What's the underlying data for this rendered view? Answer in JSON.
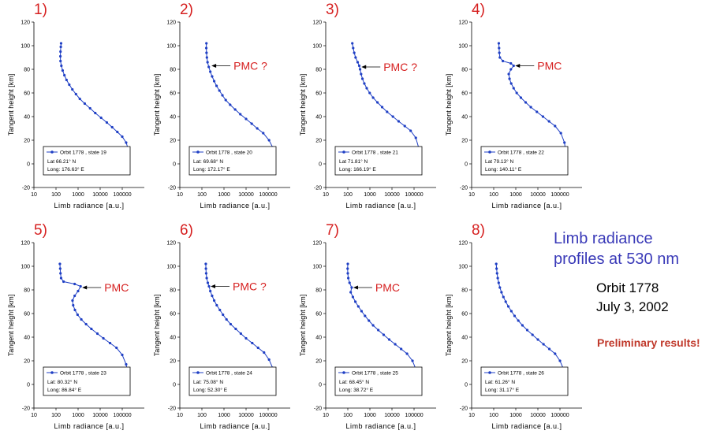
{
  "side_text": {
    "title_line1": "Limb radiance",
    "title_line2": "profiles at 530 nm",
    "orbit": "Orbit 1778",
    "date": "July 3, 2002",
    "preliminary": "Preliminary results!"
  },
  "colors": {
    "series": "#1f3fc4",
    "panel_number": "#d62020",
    "annotation": "#d62020",
    "title": "#3a3ab8",
    "preliminary": "#c0392b"
  },
  "chart_data": [
    {
      "type": "line",
      "panel_number": "1)",
      "xlabel": "Limb radiance [a.u.]",
      "ylabel": "Tangent height [km]",
      "x_scale": "log",
      "xlim": [
        10,
        1000000
      ],
      "ylim": [
        -20,
        120
      ],
      "xticks": [
        "10",
        "100",
        "1000",
        "10000",
        "100000"
      ],
      "yticks": [
        "-20",
        "0",
        "20",
        "40",
        "60",
        "80",
        "100",
        "120"
      ],
      "legend": {
        "label": "Orbit 1778 , state 19",
        "lat": "Lat 66.21° N",
        "long": "Long: 176.63° E"
      },
      "annotation": null,
      "series": [
        {
          "name": "Orbit 1778 , state 19",
          "x": [
            170,
            165,
            160,
            158,
            160,
            175,
            200,
            240,
            300,
            400,
            550,
            800,
            1200,
            2000,
            3500,
            6000,
            11000,
            20000,
            35000,
            60000,
            100000,
            150000,
            190000,
            140000
          ],
          "y": [
            102,
            99,
            95,
            91,
            87,
            83,
            79,
            75,
            71,
            67,
            63,
            59,
            55,
            51,
            47,
            43,
            39,
            35,
            31,
            27,
            23,
            18,
            12,
            0
          ]
        }
      ]
    },
    {
      "type": "line",
      "panel_number": "2)",
      "xlabel": "Limb radiance [a.u.]",
      "ylabel": "Tangent height [km]",
      "x_scale": "log",
      "xlim": [
        10,
        1000000
      ],
      "ylim": [
        -20,
        120
      ],
      "xticks": [
        "10",
        "100",
        "1000",
        "10000",
        "100000"
      ],
      "yticks": [
        "-20",
        "0",
        "20",
        "40",
        "60",
        "80",
        "100",
        "120"
      ],
      "legend": {
        "label": "Orbit 1778 , state 20",
        "lat": "Lat: 69.68° N",
        "long": "Long: 172.17° E"
      },
      "annotation": {
        "text": "PMC ?",
        "at": [
          230,
          83
        ]
      },
      "series": [
        {
          "name": "Orbit 1778 , state 20",
          "x": [
            160,
            158,
            162,
            168,
            180,
            205,
            240,
            290,
            360,
            460,
            620,
            850,
            1200,
            1900,
            3200,
            5500,
            10000,
            18000,
            32000,
            60000,
            110000,
            160000,
            180000,
            175000
          ],
          "y": [
            102,
            98,
            94,
            90,
            86,
            82,
            78,
            74,
            70,
            66,
            62,
            58,
            54,
            50,
            46,
            42,
            38,
            34,
            30,
            26,
            20,
            14,
            6,
            0
          ]
        }
      ]
    },
    {
      "type": "line",
      "panel_number": "3)",
      "xlabel": "Limb radiance [a.u.]",
      "ylabel": "Tangent height [km]",
      "x_scale": "log",
      "xlim": [
        10,
        1000000
      ],
      "ylim": [
        -20,
        120
      ],
      "xticks": [
        "10",
        "100",
        "1000",
        "10000",
        "100000"
      ],
      "yticks": [
        "-20",
        "0",
        "20",
        "40",
        "60",
        "80",
        "100",
        "120"
      ],
      "legend": {
        "label": "Orbit 1778 , state 21",
        "lat": "Lat 71.81° N",
        "long": "Long: 166.19° E"
      },
      "annotation": {
        "text": "PMC ?",
        "at": [
          350,
          82
        ]
      },
      "series": [
        {
          "name": "Orbit 1778 , state 21",
          "x": [
            160,
            175,
            195,
            225,
            280,
            330,
            360,
            400,
            460,
            560,
            720,
            980,
            1400,
            2200,
            3600,
            6000,
            11000,
            20000,
            38000,
            70000,
            120000,
            160000,
            170000,
            170000
          ],
          "y": [
            102,
            98,
            94,
            90,
            86,
            83,
            80,
            76,
            72,
            68,
            64,
            60,
            56,
            52,
            48,
            44,
            40,
            36,
            32,
            28,
            22,
            14,
            6,
            -2
          ]
        }
      ]
    },
    {
      "type": "line",
      "panel_number": "4)",
      "xlabel": "Limb radiance [a.u.]",
      "ylabel": "Tangent height [km]",
      "x_scale": "log",
      "xlim": [
        10,
        1000000
      ],
      "ylim": [
        -20,
        120
      ],
      "xticks": [
        "10",
        "100",
        "1000",
        "10000",
        "100000"
      ],
      "yticks": [
        "-20",
        "0",
        "20",
        "40",
        "60",
        "80",
        "100",
        "120"
      ],
      "legend": {
        "label": "Orbit 1778 , state 22",
        "lat": "Lat 79.13° N",
        "long": "Long: 140.11° E"
      },
      "annotation": {
        "text": "PMC",
        "at": [
          800,
          83
        ]
      },
      "series": [
        {
          "name": "Orbit 1778 , state 22",
          "x": [
            170,
            175,
            180,
            190,
            260,
            600,
            800,
            600,
            480,
            520,
            620,
            800,
            1100,
            1700,
            2800,
            4800,
            9000,
            17000,
            32000,
            60000,
            110000,
            160000,
            190000,
            185000
          ],
          "y": [
            102,
            98,
            94,
            90,
            87,
            85,
            83,
            80,
            76,
            72,
            68,
            64,
            60,
            56,
            52,
            48,
            44,
            40,
            36,
            32,
            26,
            18,
            8,
            -2
          ]
        }
      ]
    },
    {
      "type": "line",
      "panel_number": "5)",
      "xlabel": "Limb radiance [a.u.]",
      "ylabel": "Tangent height [km]",
      "x_scale": "log",
      "xlim": [
        10,
        1000000
      ],
      "ylim": [
        -20,
        120
      ],
      "xticks": [
        "10",
        "100",
        "1000",
        "10000",
        "100000"
      ],
      "yticks": [
        "-20",
        "0",
        "20",
        "40",
        "60",
        "80",
        "100",
        "120"
      ],
      "legend": {
        "label": "Orbit 1778 , state 23",
        "lat": "Lat: 80.32° N",
        "long": "Long: 86.84° E"
      },
      "annotation": {
        "text": "PMC",
        "at": [
          1300,
          82
        ]
      },
      "series": [
        {
          "name": "Orbit 1778 , state 23",
          "x": [
            150,
            155,
            160,
            170,
            220,
            700,
            1300,
            1000,
            700,
            560,
            600,
            720,
            950,
            1400,
            2300,
            4000,
            7500,
            14000,
            28000,
            55000,
            100000,
            150000,
            180000,
            180000
          ],
          "y": [
            102,
            98,
            94,
            90,
            87,
            85,
            83,
            79,
            75,
            71,
            67,
            63,
            59,
            55,
            51,
            47,
            43,
            39,
            35,
            31,
            25,
            17,
            8,
            -2
          ]
        }
      ]
    },
    {
      "type": "line",
      "panel_number": "6)",
      "xlabel": "Limb radiance [a.u.]",
      "ylabel": "Tangent height [km]",
      "x_scale": "log",
      "xlim": [
        10,
        1000000
      ],
      "ylim": [
        -20,
        120
      ],
      "xticks": [
        "10",
        "100",
        "1000",
        "10000",
        "100000"
      ],
      "yticks": [
        "-20",
        "0",
        "20",
        "40",
        "60",
        "80",
        "100",
        "120"
      ],
      "legend": {
        "label": "Orbit 1778 , state 24",
        "lat": "Lat: 75.08° N",
        "long": "Long: 52.30° E"
      },
      "annotation": {
        "text": "PMC ?",
        "at": [
          210,
          83
        ]
      },
      "series": [
        {
          "name": "Orbit 1778 , state 24",
          "x": [
            150,
            152,
            156,
            165,
            185,
            210,
            240,
            290,
            360,
            470,
            650,
            900,
            1300,
            2000,
            3400,
            5800,
            10000,
            19000,
            35000,
            65000,
            110000,
            160000,
            180000,
            178000
          ],
          "y": [
            102,
            98,
            94,
            90,
            86,
            83,
            79,
            75,
            71,
            67,
            63,
            59,
            55,
            51,
            47,
            43,
            39,
            35,
            31,
            27,
            21,
            14,
            6,
            -2
          ]
        }
      ]
    },
    {
      "type": "line",
      "panel_number": "7)",
      "xlabel": "Limb radiance [a.u.]",
      "ylabel": "Tangent height [km]",
      "x_scale": "log",
      "xlim": [
        10,
        1000000
      ],
      "ylim": [
        -20,
        120
      ],
      "xticks": [
        "10",
        "100",
        "1000",
        "10000",
        "100000"
      ],
      "yticks": [
        "-20",
        "0",
        "20",
        "40",
        "60",
        "80",
        "100",
        "120"
      ],
      "legend": {
        "label": "Orbit 1778 , state 25",
        "lat": "Lat: 68.45° N",
        "long": "Long: 38.72° E"
      },
      "annotation": {
        "text": "PMC",
        "at": [
          150,
          82
        ]
      },
      "series": [
        {
          "name": "Orbit 1778 , state 25",
          "x": [
            100,
            98,
            100,
            105,
            120,
            150,
            135,
            170,
            220,
            300,
            420,
            600,
            900,
            1400,
            2400,
            4200,
            7500,
            14000,
            26000,
            48000,
            85000,
            120000,
            140000,
            140000
          ],
          "y": [
            102,
            98,
            94,
            90,
            86,
            82,
            78,
            74,
            70,
            66,
            62,
            58,
            54,
            50,
            46,
            42,
            38,
            34,
            30,
            26,
            20,
            13,
            5,
            -2
          ]
        }
      ]
    },
    {
      "type": "line",
      "panel_number": "8)",
      "xlabel": "Limb radiance [a.u.]",
      "ylabel": "Tangent height [km]",
      "x_scale": "log",
      "xlim": [
        10,
        1000000
      ],
      "ylim": [
        -20,
        120
      ],
      "xticks": [
        "10",
        "100",
        "1000",
        "10000",
        "100000"
      ],
      "yticks": [
        "-20",
        "0",
        "20",
        "40",
        "60",
        "80",
        "100",
        "120"
      ],
      "legend": {
        "label": "Orbit 1778 , state 26",
        "lat": "Lat: 61.26° N",
        "long": "Long: 31.17° E"
      },
      "annotation": null,
      "series": [
        {
          "name": "Orbit 1778 , state 26",
          "x": [
            130,
            135,
            142,
            152,
            168,
            190,
            225,
            275,
            350,
            460,
            630,
            880,
            1300,
            2000,
            3300,
            5700,
            10000,
            18000,
            33000,
            60000,
            100000,
            145000,
            170000,
            170000
          ],
          "y": [
            102,
            98,
            94,
            90,
            86,
            82,
            78,
            74,
            70,
            66,
            62,
            58,
            54,
            50,
            46,
            42,
            38,
            34,
            30,
            26,
            20,
            13,
            5,
            -2
          ]
        }
      ]
    }
  ]
}
